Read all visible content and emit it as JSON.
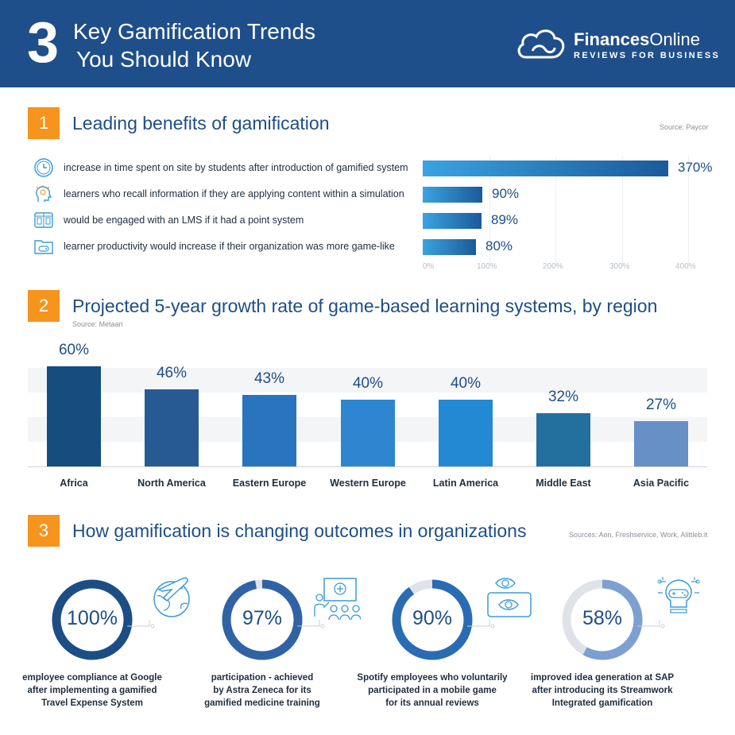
{
  "header": {
    "number": "3",
    "title_line1": "Key Gamification Trends",
    "title_line2": "You Should Know",
    "brand_bold": "Finances",
    "brand_rest": "Online",
    "brand_sub": "REVIEWS FOR BUSINESS"
  },
  "section1": {
    "number": "1",
    "title": "Leading benefits of gamification",
    "source": "Source: Paycor"
  },
  "section2": {
    "number": "2",
    "title": "Projected 5-year growth rate of game-based learning systems, by region",
    "source": "Source: Metaari"
  },
  "section3": {
    "number": "3",
    "title": "How gamification is changing outcomes in organizations",
    "source": "Sources: Aon, Freshservice, Work, Alittleb.it"
  },
  "colors": {
    "header_bg": "#1f4f8a",
    "accent": "#f6941d",
    "text_blue": "#1e4e87"
  },
  "chart_data": [
    {
      "type": "bar",
      "orientation": "horizontal",
      "categories": [
        "increase in time spent on site by students after introduction of gamified system",
        "learners who recall information if they are applying content within a simulation",
        "would be engaged with an LMS if it had a point system",
        "learner productivity would increase if their organization was more game-like"
      ],
      "values": [
        370,
        90,
        89,
        80
      ],
      "value_labels": [
        "370%",
        "90%",
        "89%",
        "80%"
      ],
      "icons": [
        "clock-icon",
        "lightbulb-head-icon",
        "scoreboard-icon",
        "gamepad-folder-icon"
      ],
      "xlim": [
        0,
        400
      ],
      "ticks": [
        "0%",
        "100%",
        "200%",
        "300%",
        "400%"
      ]
    },
    {
      "type": "bar",
      "orientation": "vertical",
      "categories": [
        "Africa",
        "North America",
        "Eastern Europe",
        "Western Europe",
        "Latin America",
        "Middle East",
        "Asia Pacific"
      ],
      "values": [
        60,
        46,
        43,
        40,
        40,
        32,
        27
      ],
      "value_labels": [
        "60%",
        "46%",
        "43%",
        "40%",
        "40%",
        "32%",
        "27%"
      ],
      "colors": [
        "#154d7e",
        "#275a93",
        "#2a73bd",
        "#2d86cf",
        "#2389d3",
        "#23709f",
        "#6690c6"
      ],
      "ylim": [
        0,
        60
      ]
    },
    {
      "type": "pie",
      "style": "donut",
      "values": [
        100,
        97,
        90,
        58
      ],
      "value_labels": [
        "100%",
        "97%",
        "90%",
        "58%"
      ],
      "colors": [
        "#1c4e85",
        "#2f63a5",
        "#2a6cb4",
        "#7d9fd1"
      ],
      "icons": [
        "airplane-globe-icon",
        "presentation-icon",
        "phone-eye-icon",
        "gamepad-bulb-icon"
      ],
      "captions": [
        [
          "employee compliance at Google",
          "after implementing a gamified",
          "Travel Expense System"
        ],
        [
          "participation - achieved",
          "by Astra Zeneca for its",
          "gamified medicine training"
        ],
        [
          "Spotify employees who voluntarily",
          "participated in a mobile game",
          "for its annual reviews"
        ],
        [
          "improved idea generation at SAP",
          "after introducing its Streamwork",
          "Integrated gamification"
        ]
      ]
    }
  ]
}
